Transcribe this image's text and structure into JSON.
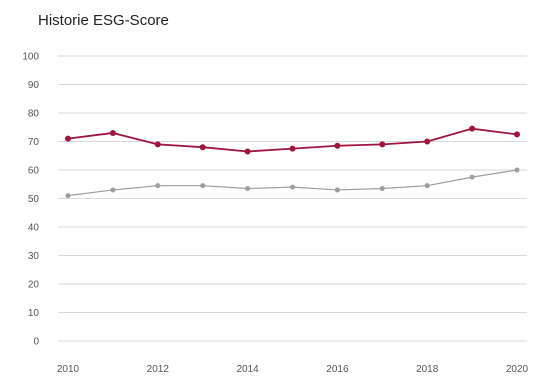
{
  "chart_data": {
    "type": "line",
    "title": "Historie ESG-Score",
    "xlabel": "",
    "ylabel": "",
    "x": [
      2010,
      2011,
      2012,
      2013,
      2014,
      2015,
      2016,
      2017,
      2018,
      2019,
      2020
    ],
    "xlim": [
      2010,
      2020
    ],
    "ylim": [
      0,
      100
    ],
    "x_ticks": [
      2010,
      2012,
      2014,
      2016,
      2018,
      2020
    ],
    "y_ticks": [
      0,
      10,
      20,
      30,
      40,
      50,
      60,
      70,
      80,
      90,
      100
    ],
    "grid": true,
    "legend": "none",
    "series": [
      {
        "color": "#a0153e",
        "values": [
          71,
          73,
          69,
          68,
          66.5,
          67.5,
          68.5,
          69,
          70,
          74.5,
          72.5
        ]
      },
      {
        "color": "#9e9e9e",
        "values": [
          51,
          53,
          54.5,
          54.5,
          53.5,
          54,
          53,
          53.5,
          54.5,
          57.5,
          60
        ]
      }
    ]
  }
}
